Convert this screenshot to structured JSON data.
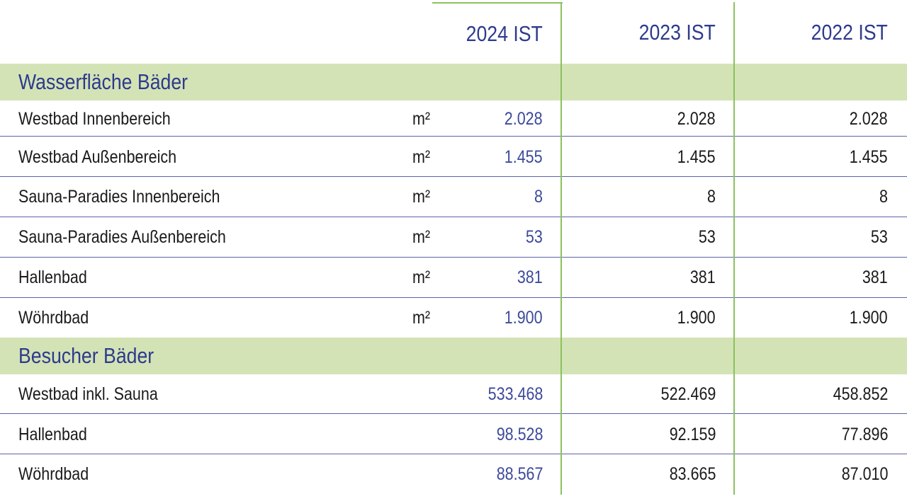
{
  "columns": {
    "c2024": "2024 IST",
    "c2023": "2023 IST",
    "c2022": "2022 IST"
  },
  "sections": [
    {
      "title": "Wasserfläche Bäder",
      "rows": [
        {
          "label": "Westbad Innenbereich",
          "unit": "m²",
          "v2024": "2.028",
          "v2023": "2.028",
          "v2022": "2.028"
        },
        {
          "label": "Westbad Außenbereich",
          "unit": "m²",
          "v2024": "1.455",
          "v2023": "1.455",
          "v2022": "1.455"
        },
        {
          "label": "Sauna-Paradies Innenbereich",
          "unit": "m²",
          "v2024": "8",
          "v2023": "8",
          "v2022": "8"
        },
        {
          "label": "Sauna-Paradies Außenbereich",
          "unit": "m²",
          "v2024": "53",
          "v2023": "53",
          "v2022": "53"
        },
        {
          "label": "Hallenbad",
          "unit": "m²",
          "v2024": "381",
          "v2023": "381",
          "v2022": "381"
        },
        {
          "label": "Wöhrdbad",
          "unit": "m²",
          "v2024": "1.900",
          "v2023": "1.900",
          "v2022": "1.900"
        }
      ]
    },
    {
      "title": "Besucher Bäder",
      "rows": [
        {
          "label": "Westbad inkl. Sauna",
          "unit": "",
          "v2024": "533.468",
          "v2023": "522.469",
          "v2022": "458.852"
        },
        {
          "label": "Hallenbad",
          "unit": "",
          "v2024": "98.528",
          "v2023": "92.159",
          "v2022": "77.896"
        },
        {
          "label": "Wöhrdbad",
          "unit": "",
          "v2024": "88.567",
          "v2023": "83.665",
          "v2022": "87.010"
        }
      ]
    }
  ],
  "colors": {
    "accent_blue": "#2e3a8c",
    "section_green": "#d3e3b6",
    "divider_green": "#8cc15e",
    "row_rule": "#5a63a8"
  }
}
